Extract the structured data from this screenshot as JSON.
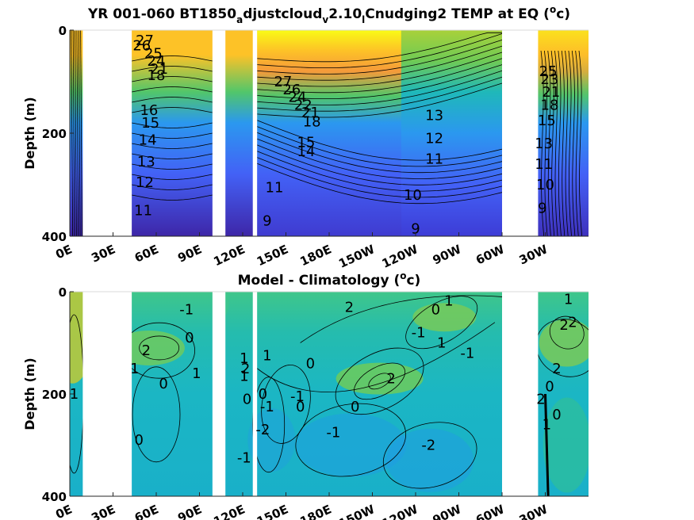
{
  "chart_data": [
    {
      "type": "heatmap",
      "subtype": "filled-contour",
      "title_parts": [
        "YR 001-060 BT1850",
        "a",
        "djustcloud",
        "v",
        "2.10",
        "l",
        "Cnudging2 TEMP at EQ (",
        "o",
        "c)"
      ],
      "xlabel": "",
      "ylabel": "Depth (m)",
      "x_ticks": [
        "0E",
        "30E",
        "60E",
        "90E",
        "120E",
        "150E",
        "180E",
        "150W",
        "120W",
        "90W",
        "60W",
        "30W"
      ],
      "y_ticks": [
        "0",
        "200",
        "400"
      ],
      "xlim_deg_east": [
        0,
        360
      ],
      "ylim": [
        400,
        0
      ],
      "land_gaps_deg_east": [
        [
          9,
          43
        ],
        [
          99,
          108
        ],
        [
          127,
          130
        ],
        [
          300,
          325
        ]
      ],
      "colormap": [
        "#3e26a8",
        "#4361f6",
        "#2b98ef",
        "#1fb8b9",
        "#52c66a",
        "#c2bd3c",
        "#fdc227",
        "#f9fb15"
      ],
      "contour_labels": [
        {
          "x": 52,
          "y": 20,
          "text": "27"
        },
        {
          "x": 50,
          "y": 30,
          "text": "26"
        },
        {
          "x": 58,
          "y": 45,
          "text": "25"
        },
        {
          "x": 60,
          "y": 60,
          "text": "24"
        },
        {
          "x": 62,
          "y": 75,
          "text": "21"
        },
        {
          "x": 60,
          "y": 88,
          "text": "18"
        },
        {
          "x": 55,
          "y": 155,
          "text": "16"
        },
        {
          "x": 56,
          "y": 180,
          "text": "15"
        },
        {
          "x": 54,
          "y": 213,
          "text": "14"
        },
        {
          "x": 53,
          "y": 255,
          "text": "13"
        },
        {
          "x": 52,
          "y": 295,
          "text": "12"
        },
        {
          "x": 51,
          "y": 350,
          "text": "11"
        },
        {
          "x": 148,
          "y": 100,
          "text": "27"
        },
        {
          "x": 154,
          "y": 115,
          "text": "26"
        },
        {
          "x": 158,
          "y": 130,
          "text": "24"
        },
        {
          "x": 162,
          "y": 145,
          "text": "22"
        },
        {
          "x": 167,
          "y": 160,
          "text": "21"
        },
        {
          "x": 168,
          "y": 178,
          "text": "18"
        },
        {
          "x": 164,
          "y": 218,
          "text": "15"
        },
        {
          "x": 164,
          "y": 235,
          "text": "14"
        },
        {
          "x": 142,
          "y": 305,
          "text": "11"
        },
        {
          "x": 137,
          "y": 370,
          "text": "9"
        },
        {
          "x": 238,
          "y": 320,
          "text": "10"
        },
        {
          "x": 240,
          "y": 385,
          "text": "9"
        },
        {
          "x": 253,
          "y": 165,
          "text": "13"
        },
        {
          "x": 253,
          "y": 210,
          "text": "12"
        },
        {
          "x": 253,
          "y": 250,
          "text": "11"
        },
        {
          "x": 332,
          "y": 80,
          "text": "25"
        },
        {
          "x": 333,
          "y": 95,
          "text": "23"
        },
        {
          "x": 334,
          "y": 120,
          "text": "21"
        },
        {
          "x": 333,
          "y": 145,
          "text": "18"
        },
        {
          "x": 331,
          "y": 175,
          "text": "15"
        },
        {
          "x": 329,
          "y": 220,
          "text": "13"
        },
        {
          "x": 329,
          "y": 260,
          "text": "11"
        },
        {
          "x": 330,
          "y": 300,
          "text": "10"
        },
        {
          "x": 328,
          "y": 345,
          "text": "9"
        }
      ]
    },
    {
      "type": "heatmap",
      "subtype": "filled-contour",
      "title_parts": [
        "Model - Climatology (",
        "o",
        "c)"
      ],
      "xlabel": "",
      "ylabel": "Depth (m)",
      "x_ticks": [
        "0E",
        "30E",
        "60E",
        "90E",
        "120E",
        "150E",
        "180E",
        "150W",
        "120W",
        "90W",
        "60W",
        "30W"
      ],
      "y_ticks": [
        "0",
        "200",
        "400"
      ],
      "xlim_deg_east": [
        0,
        360
      ],
      "ylim": [
        400,
        0
      ],
      "land_gaps_deg_east": [
        [
          9,
          43
        ],
        [
          99,
          108
        ],
        [
          127,
          130
        ],
        [
          300,
          325
        ]
      ],
      "colormap": [
        "#3e26a8",
        "#4361f6",
        "#2b98ef",
        "#1fb8b9",
        "#52c66a",
        "#c2bd3c",
        "#fdc227",
        "#f9fb15"
      ],
      "contour_labels": [
        {
          "x": 81,
          "y": 35,
          "text": "-1"
        },
        {
          "x": 83,
          "y": 90,
          "text": "0"
        },
        {
          "x": 53,
          "y": 115,
          "text": "2"
        },
        {
          "x": 45,
          "y": 150,
          "text": "1"
        },
        {
          "x": 88,
          "y": 160,
          "text": "1"
        },
        {
          "x": 65,
          "y": 180,
          "text": "0"
        },
        {
          "x": 3,
          "y": 200,
          "text": "1"
        },
        {
          "x": 48,
          "y": 290,
          "text": "0"
        },
        {
          "x": 121,
          "y": 130,
          "text": "1"
        },
        {
          "x": 122,
          "y": 150,
          "text": "2"
        },
        {
          "x": 121,
          "y": 165,
          "text": "1"
        },
        {
          "x": 123,
          "y": 210,
          "text": "0"
        },
        {
          "x": 137,
          "y": 125,
          "text": "1"
        },
        {
          "x": 134,
          "y": 200,
          "text": "0"
        },
        {
          "x": 137,
          "y": 225,
          "text": "-1"
        },
        {
          "x": 134,
          "y": 270,
          "text": "-2"
        },
        {
          "x": 121,
          "y": 325,
          "text": "-1"
        },
        {
          "x": 160,
          "y": 225,
          "text": "0"
        },
        {
          "x": 158,
          "y": 205,
          "text": "-1"
        },
        {
          "x": 194,
          "y": 30,
          "text": "2"
        },
        {
          "x": 167,
          "y": 140,
          "text": "0"
        },
        {
          "x": 198,
          "y": 225,
          "text": "0"
        },
        {
          "x": 183,
          "y": 275,
          "text": "-1"
        },
        {
          "x": 223,
          "y": 170,
          "text": "2"
        },
        {
          "x": 242,
          "y": 80,
          "text": "-1"
        },
        {
          "x": 254,
          "y": 35,
          "text": "0"
        },
        {
          "x": 263,
          "y": 18,
          "text": "1"
        },
        {
          "x": 258,
          "y": 100,
          "text": "1"
        },
        {
          "x": 276,
          "y": 120,
          "text": "-1"
        },
        {
          "x": 249,
          "y": 300,
          "text": "-2"
        },
        {
          "x": 346,
          "y": 15,
          "text": "1"
        },
        {
          "x": 343,
          "y": 65,
          "text": "2"
        },
        {
          "x": 349,
          "y": 60,
          "text": "2"
        },
        {
          "x": 338,
          "y": 150,
          "text": "2"
        },
        {
          "x": 333,
          "y": 185,
          "text": "0"
        },
        {
          "x": 327,
          "y": 210,
          "text": "2"
        },
        {
          "x": 338,
          "y": 240,
          "text": "0"
        },
        {
          "x": 331,
          "y": 260,
          "text": "1"
        }
      ]
    }
  ]
}
